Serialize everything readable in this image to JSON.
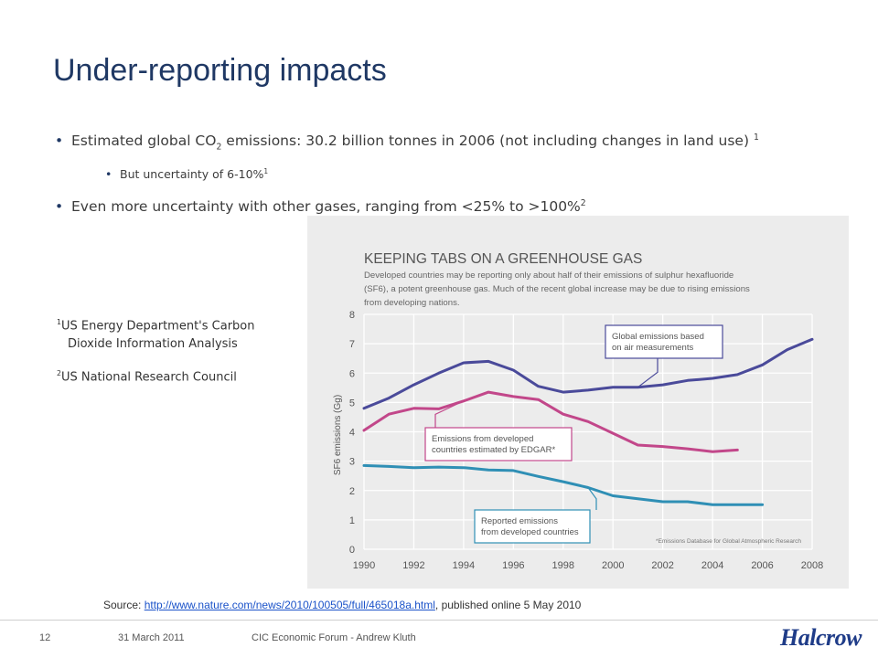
{
  "slide": {
    "title": "Under-reporting impacts",
    "bullets": {
      "b1": {
        "text_a": "Estimated global CO",
        "sub": "2",
        "text_b": " emissions: 30.2 billion tonnes in 2006 (not including changes in land use)",
        "sup": "1"
      },
      "b2": {
        "text": "But uncertainty of 6-10%",
        "sup": "1"
      },
      "b3": {
        "text": "Even more uncertainty with other gases, ranging from <25% to >100%",
        "sup": "2"
      }
    },
    "refs": {
      "r1_sup": "1",
      "r1_a": "US Energy Department's Carbon",
      "r1_b": "Dioxide Information Analysis",
      "r2_sup": "2",
      "r2": "US National Research Council"
    },
    "source": {
      "prefix": "Source: ",
      "link": "http://www.nature.com/news/2010/100505/full/465018a.html",
      "suffix": ",  published online 5 May 2010"
    },
    "footer": {
      "page": "12",
      "date": "31 March 2011",
      "event": "CIC Economic Forum - Andrew Kluth"
    },
    "logo": "Halcrow"
  },
  "chart_data": {
    "type": "line",
    "title": "KEEPING TABS ON A GREENHOUSE GAS",
    "subtitle_lines": [
      "Developed countries may be reporting only about half of their emissions of sulphur hexafluoride",
      "(SF6), a potent greenhouse gas. Much of the recent global increase may be due to rising emissions",
      "from developing nations."
    ],
    "ylabel": "SF6 emissions (Gg)",
    "xlabel": "",
    "xlim": [
      1990,
      2008
    ],
    "ylim": [
      0,
      8
    ],
    "xticks": [
      1990,
      1992,
      1994,
      1996,
      1998,
      2000,
      2002,
      2004,
      2006,
      2008
    ],
    "yticks": [
      0,
      1,
      2,
      3,
      4,
      5,
      6,
      7,
      8
    ],
    "grid": true,
    "series": [
      {
        "name": "Global emissions based on air measurements",
        "color": "#4a4a9a",
        "x": [
          1990,
          1991,
          1992,
          1993,
          1994,
          1995,
          1996,
          1997,
          1998,
          1999,
          2000,
          2001,
          2002,
          2003,
          2004,
          2005,
          2006,
          2007,
          2008
        ],
        "values": [
          4.8,
          5.15,
          5.6,
          6.0,
          6.35,
          6.4,
          6.1,
          5.55,
          5.35,
          5.42,
          5.52,
          5.52,
          5.6,
          5.75,
          5.82,
          5.95,
          6.28,
          6.8,
          7.15
        ]
      },
      {
        "name": "Emissions from developed countries estimated by EDGAR*",
        "color": "#c2478a",
        "x": [
          1990,
          1991,
          1992,
          1993,
          1994,
          1995,
          1996,
          1997,
          1998,
          1999,
          2000,
          2001,
          2002,
          2003,
          2004,
          2005
        ],
        "values": [
          4.05,
          4.6,
          4.8,
          4.78,
          5.05,
          5.35,
          5.2,
          5.1,
          4.6,
          4.35,
          3.95,
          3.55,
          3.5,
          3.42,
          3.32,
          3.38
        ]
      },
      {
        "name": "Reported emissions from developed countries",
        "color": "#2f8fb5",
        "x": [
          1990,
          1991,
          1992,
          1993,
          1994,
          1995,
          1996,
          1997,
          1998,
          1999,
          2000,
          2001,
          2002,
          2003,
          2004,
          2005,
          2006
        ],
        "values": [
          2.85,
          2.82,
          2.78,
          2.8,
          2.78,
          2.7,
          2.68,
          2.48,
          2.3,
          2.1,
          1.82,
          1.72,
          1.62,
          1.62,
          1.52,
          1.52,
          1.52
        ]
      }
    ],
    "annotations": [
      {
        "lines": [
          "Global emissions based",
          "on air measurements"
        ],
        "series": 0,
        "x": 2001
      },
      {
        "lines": [
          "Emissions from developed",
          "countries estimated by EDGAR*"
        ],
        "series": 1,
        "x": 1994
      },
      {
        "lines": [
          "Reported emissions",
          "from developed countries"
        ],
        "series": 2,
        "x": 1999
      }
    ],
    "footnote": "*Emissions Database for Global Atmospheric Research",
    "colors": {
      "panel": "#ececec",
      "grid": "#ffffff",
      "text": "#555555",
      "title": "#555555"
    }
  }
}
